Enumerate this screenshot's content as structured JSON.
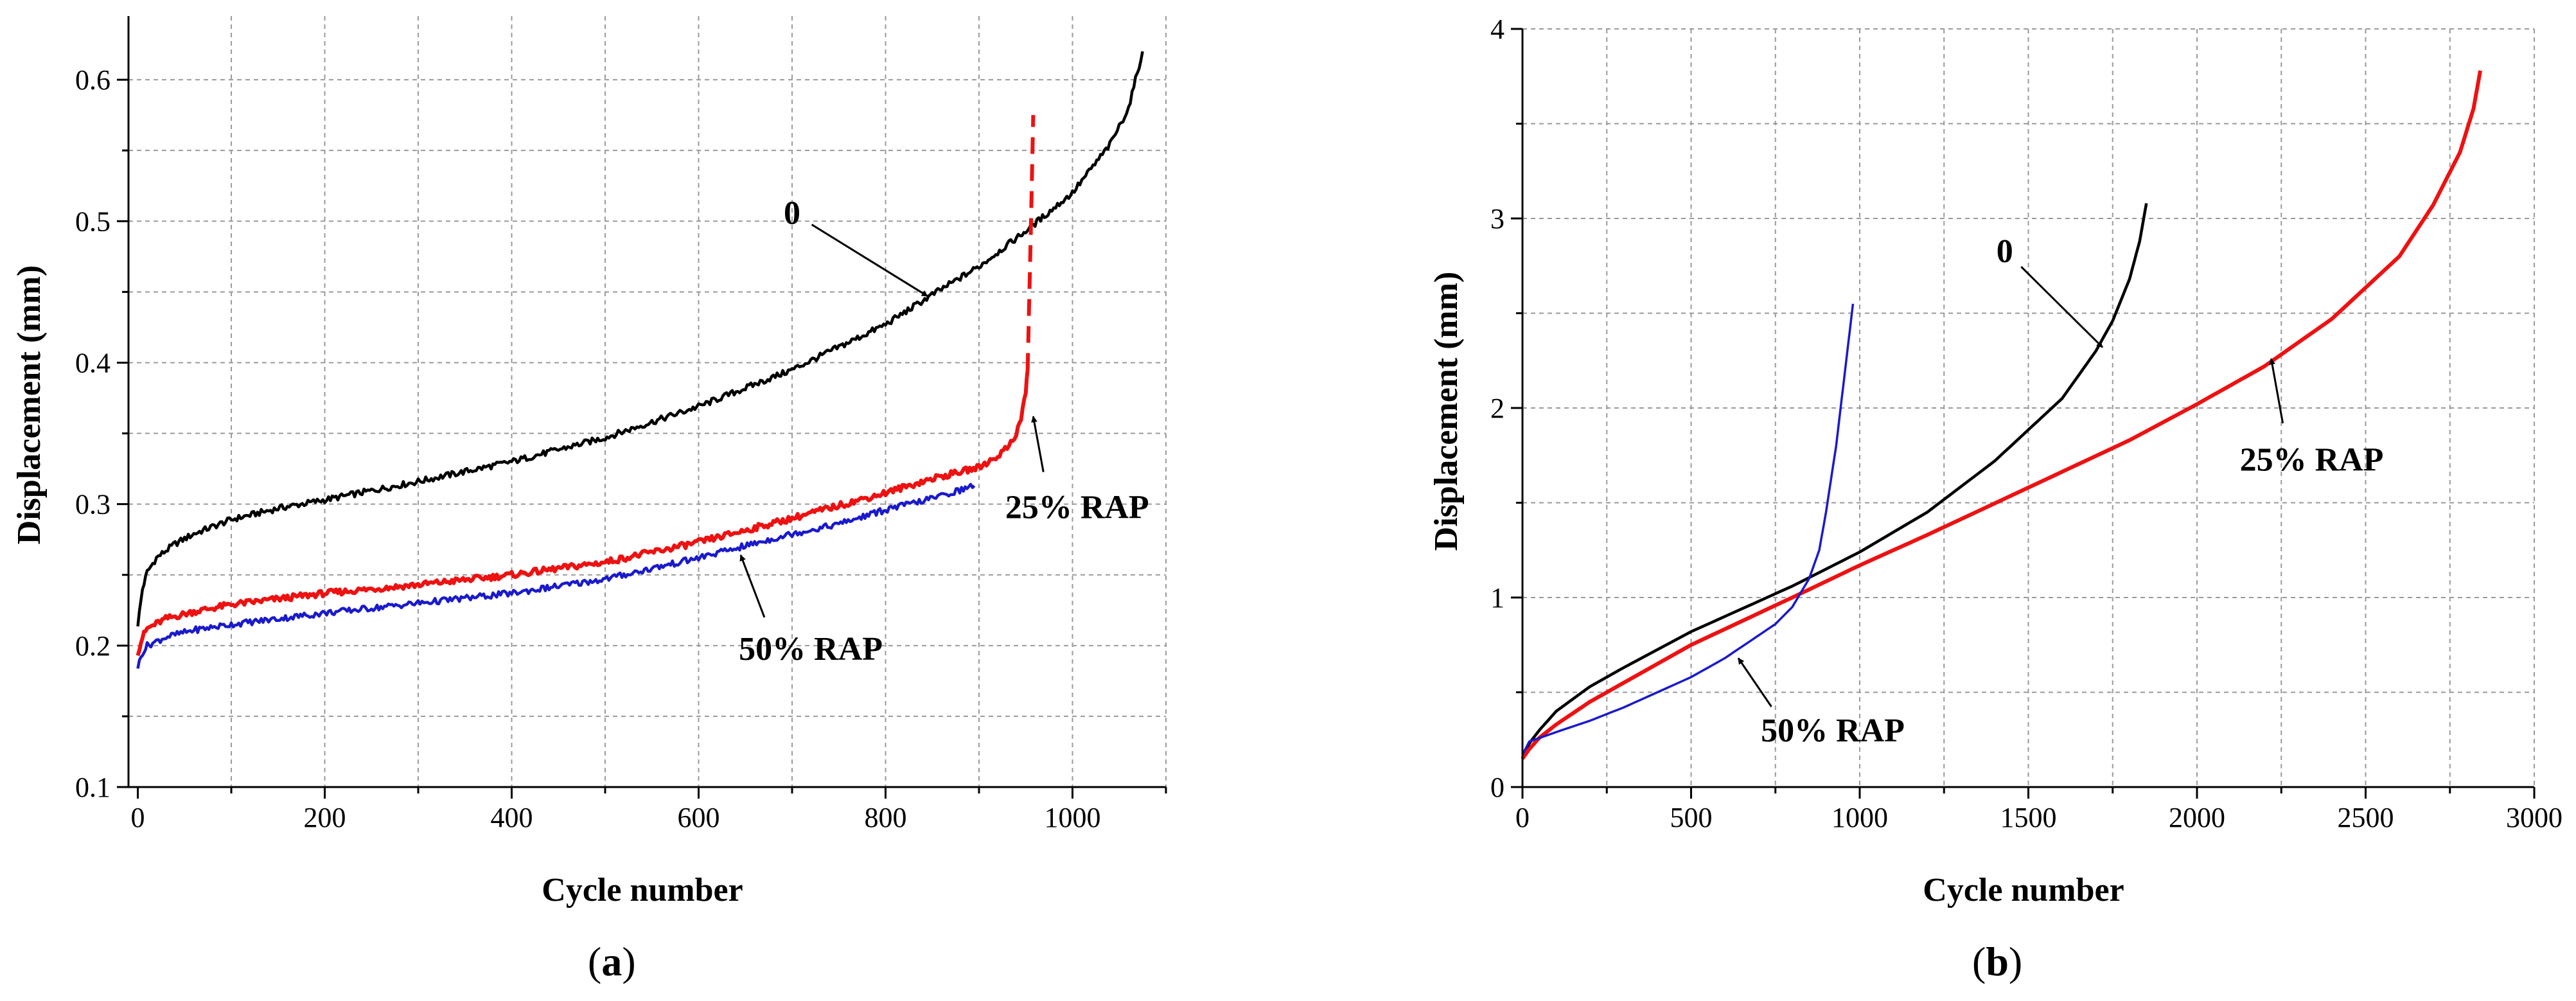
{
  "chart_data": [
    {
      "type": "line",
      "panel_label": "a",
      "xlabel": "Cycle number",
      "ylabel": "Displacement (mm)",
      "xlim": [
        -10,
        1100
      ],
      "ylim": [
        0.1,
        0.645
      ],
      "xticks": [
        0,
        200,
        400,
        600,
        800,
        1000
      ],
      "xtick_labels": [
        "0",
        "200",
        "400",
        "600",
        "800",
        "1000"
      ],
      "yticks": [
        0.1,
        0.2,
        0.3,
        0.4,
        0.5,
        0.6
      ],
      "ytick_labels": [
        "0.1",
        "0.2",
        "0.3",
        "0.4",
        "0.5",
        "0.6"
      ],
      "grid": true,
      "series": [
        {
          "name": "0",
          "color": "#000000",
          "x": [
            0,
            5,
            10,
            20,
            40,
            60,
            100,
            150,
            200,
            300,
            400,
            500,
            600,
            700,
            800,
            850,
            900,
            950,
            1000,
            1040,
            1060,
            1075
          ],
          "y": [
            0.215,
            0.24,
            0.252,
            0.262,
            0.272,
            0.279,
            0.289,
            0.297,
            0.303,
            0.316,
            0.33,
            0.347,
            0.369,
            0.395,
            0.427,
            0.448,
            0.468,
            0.493,
            0.52,
            0.554,
            0.58,
            0.62
          ]
        },
        {
          "name": "25% RAP",
          "color": "#ee1111",
          "x": [
            0,
            5,
            10,
            30,
            60,
            100,
            200,
            300,
            400,
            500,
            600,
            700,
            800,
            850,
            900,
            920,
            930,
            940,
            945,
            950,
            952
          ],
          "y": [
            0.195,
            0.206,
            0.212,
            0.219,
            0.224,
            0.229,
            0.237,
            0.243,
            0.25,
            0.259,
            0.273,
            0.29,
            0.308,
            0.318,
            0.326,
            0.334,
            0.34,
            0.35,
            0.36,
            0.38,
            0.395
          ]
        },
        {
          "name": "25% RAP (failure)",
          "color": "#ee1111",
          "dashed": true,
          "x": [
            952,
            955,
            958
          ],
          "y": [
            0.395,
            0.48,
            0.575
          ]
        },
        {
          "name": "50% RAP",
          "color": "#1a1acc",
          "x": [
            0,
            5,
            10,
            30,
            60,
            100,
            200,
            300,
            400,
            500,
            600,
            700,
            750,
            800,
            850,
            895
          ],
          "y": [
            0.185,
            0.195,
            0.2,
            0.206,
            0.211,
            0.215,
            0.223,
            0.23,
            0.237,
            0.247,
            0.262,
            0.279,
            0.286,
            0.296,
            0.304,
            0.313
          ]
        }
      ],
      "annotations": [
        {
          "text": "0",
          "label_x": 700,
          "label_y": 0.498,
          "arrow_to_x": 845,
          "arrow_to_y": 0.447
        },
        {
          "text": "25% RAP",
          "label_x": 1005,
          "label_y": 0.29,
          "arrow_to_x": 958,
          "arrow_to_y": 0.362
        },
        {
          "text": "50% RAP",
          "label_x": 720,
          "label_y": 0.19,
          "arrow_to_x": 645,
          "arrow_to_y": 0.264
        }
      ]
    },
    {
      "type": "line",
      "panel_label": "b",
      "xlabel": "Cycle number",
      "ylabel": "Displacement (mm)",
      "xlim": [
        0,
        3000
      ],
      "ylim": [
        0,
        4
      ],
      "xticks": [
        0,
        500,
        1000,
        1500,
        2000,
        2500,
        3000
      ],
      "xtick_labels": [
        "0",
        "500",
        "1000",
        "1500",
        "2000",
        "2500",
        "3000"
      ],
      "yticks": [
        0,
        1,
        2,
        3,
        4
      ],
      "ytick_labels": [
        "0",
        "1",
        "2",
        "3",
        "4"
      ],
      "grid": true,
      "series": [
        {
          "name": "0",
          "color": "#000000",
          "x": [
            0,
            20,
            50,
            100,
            200,
            300,
            500,
            800,
            1000,
            1200,
            1400,
            1600,
            1700,
            1750,
            1800,
            1830,
            1850
          ],
          "y": [
            0.15,
            0.23,
            0.3,
            0.4,
            0.53,
            0.63,
            0.82,
            1.06,
            1.24,
            1.45,
            1.72,
            2.05,
            2.3,
            2.46,
            2.68,
            2.88,
            3.08
          ]
        },
        {
          "name": "25% RAP",
          "color": "#ee1111",
          "x": [
            0,
            20,
            50,
            100,
            200,
            300,
            500,
            800,
            1000,
            1200,
            1500,
            1800,
            2000,
            2200,
            2400,
            2600,
            2700,
            2780,
            2820,
            2840
          ],
          "y": [
            0.15,
            0.2,
            0.26,
            0.33,
            0.45,
            0.55,
            0.75,
            1.0,
            1.17,
            1.33,
            1.58,
            1.83,
            2.02,
            2.22,
            2.47,
            2.8,
            3.07,
            3.35,
            3.58,
            3.78
          ]
        },
        {
          "name": "50% RAP",
          "color": "#1a1acc",
          "x": [
            0,
            20,
            100,
            200,
            300,
            500,
            600,
            700,
            750,
            800,
            850,
            880,
            900,
            930,
            950,
            970,
            980
          ],
          "y": [
            0.17,
            0.24,
            0.29,
            0.35,
            0.42,
            0.58,
            0.68,
            0.8,
            0.86,
            0.95,
            1.1,
            1.25,
            1.45,
            1.8,
            2.1,
            2.4,
            2.55
          ]
        }
      ],
      "annotations": [
        {
          "text": "0",
          "label_x": 1430,
          "label_y": 2.77,
          "arrow_to_x": 1720,
          "arrow_to_y": 2.32
        },
        {
          "text": "25% RAP",
          "label_x": 2340,
          "label_y": 1.67,
          "arrow_to_x": 2220,
          "arrow_to_y": 2.26
        },
        {
          "text": "50% RAP",
          "label_x": 920,
          "label_y": 0.24,
          "arrow_to_x": 640,
          "arrow_to_y": 0.68
        }
      ]
    }
  ]
}
